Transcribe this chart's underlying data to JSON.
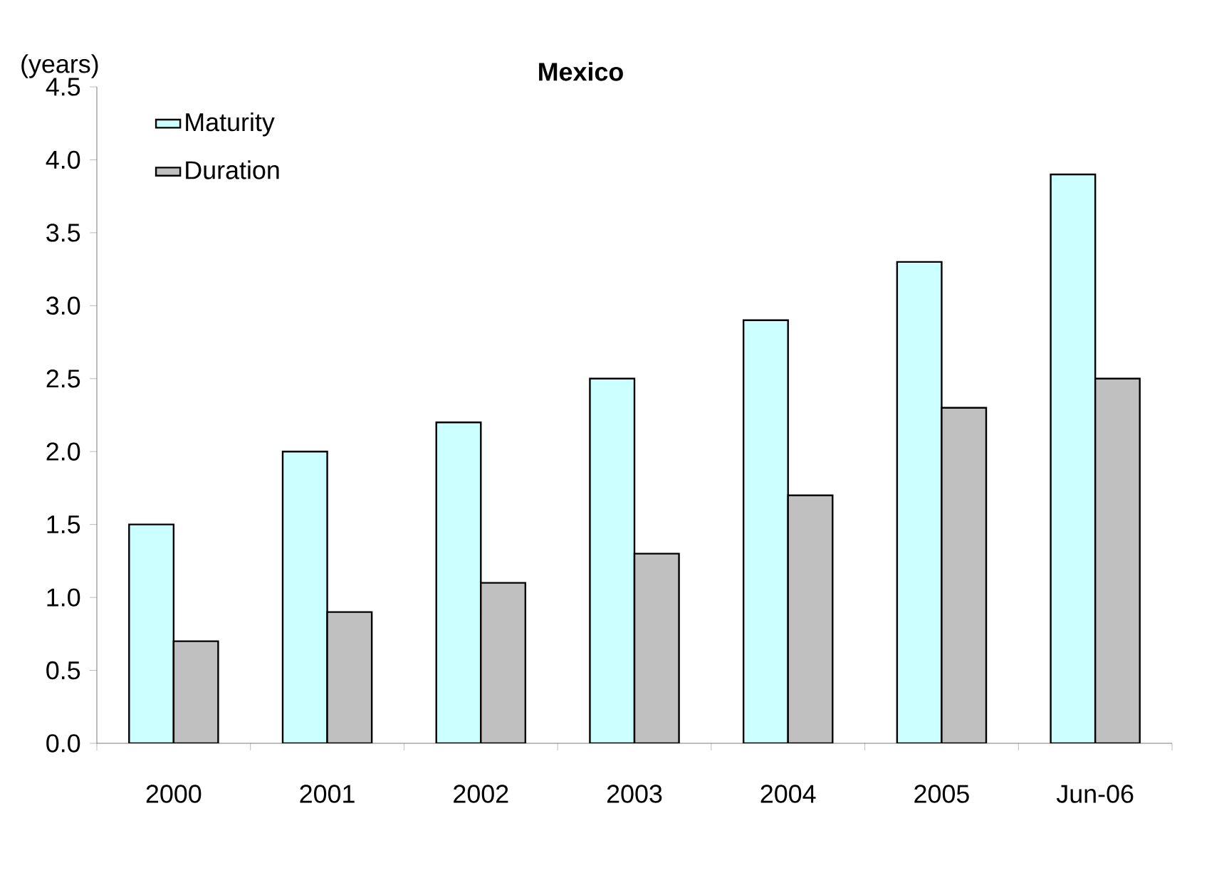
{
  "chart_data": {
    "type": "bar",
    "title": "Mexico",
    "ylabel": "(years)",
    "categories": [
      "2000",
      "2001",
      "2002",
      "2003",
      "2004",
      "2005",
      "Jun-06"
    ],
    "series": [
      {
        "name": "Maturity",
        "color": "#ccffff",
        "values": [
          1.5,
          2.0,
          2.2,
          2.5,
          2.9,
          3.3,
          3.9
        ]
      },
      {
        "name": "Duration",
        "color": "#c0c0c0",
        "values": [
          0.7,
          0.9,
          1.1,
          1.3,
          1.7,
          2.3,
          2.5
        ]
      }
    ],
    "ylim": [
      0,
      4.5
    ],
    "yticks": [
      {
        "value": 0,
        "label": "0.0"
      },
      {
        "value": 0.5,
        "label": "0.5"
      },
      {
        "value": 1,
        "label": "1.0"
      },
      {
        "value": 1.5,
        "label": "1.5"
      },
      {
        "value": 2,
        "label": "2.0"
      },
      {
        "value": 2.5,
        "label": "2.5"
      },
      {
        "value": 3,
        "label": "3.0"
      },
      {
        "value": 3.5,
        "label": "3.5"
      },
      {
        "value": 4,
        "label": "4.0"
      },
      {
        "value": 4.5,
        "label": "4.5"
      }
    ],
    "grid": false,
    "legend": "top left"
  }
}
